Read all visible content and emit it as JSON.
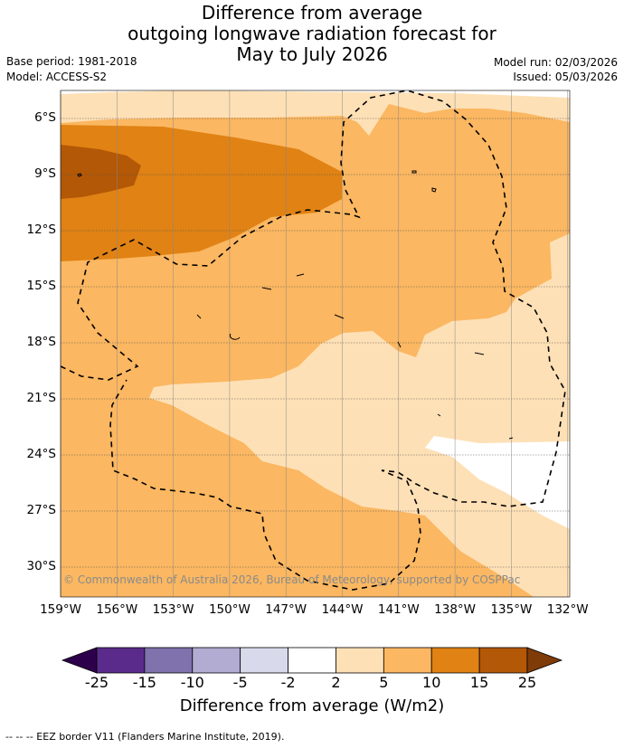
{
  "title": {
    "line1": "Difference from average",
    "line2": "outgoing longwave radiation forecast for",
    "line3": "May to July 2026"
  },
  "meta": {
    "base_period": "Base period: 1981-2018",
    "model": "Model: ACCESS-S2",
    "model_run": "Model run: 02/03/2026",
    "issued": "Issued: 05/03/2026"
  },
  "map": {
    "lat_labels": [
      "6°S",
      "9°S",
      "12°S",
      "15°S",
      "18°S",
      "21°S",
      "24°S",
      "27°S",
      "30°S"
    ],
    "lon_labels": [
      "159°W",
      "156°W",
      "153°W",
      "150°W",
      "147°W",
      "144°W",
      "141°W",
      "138°W",
      "135°W",
      "132°W"
    ],
    "copyright": "© Commonwealth of Australia 2026, Bureau of Meteorology, supported by COSPPac"
  },
  "colorbar": {
    "ticks": [
      "-25",
      "-15",
      "-10",
      "-5",
      "-2",
      "2",
      "5",
      "10",
      "15",
      "25"
    ],
    "label": "Difference from average (W/m2)",
    "colors": [
      "#5a2b8a",
      "#8072ad",
      "#b2abd2",
      "#d8daeb",
      "#ffffff",
      "#fee0b6",
      "#fbb761",
      "#e08214",
      "#b35806"
    ],
    "under_color": "#2d004b",
    "over_color": "#7f3b08"
  },
  "footer": "--  --  -- EEZ border V11 (Flanders Marine Institute, 2019)."
}
